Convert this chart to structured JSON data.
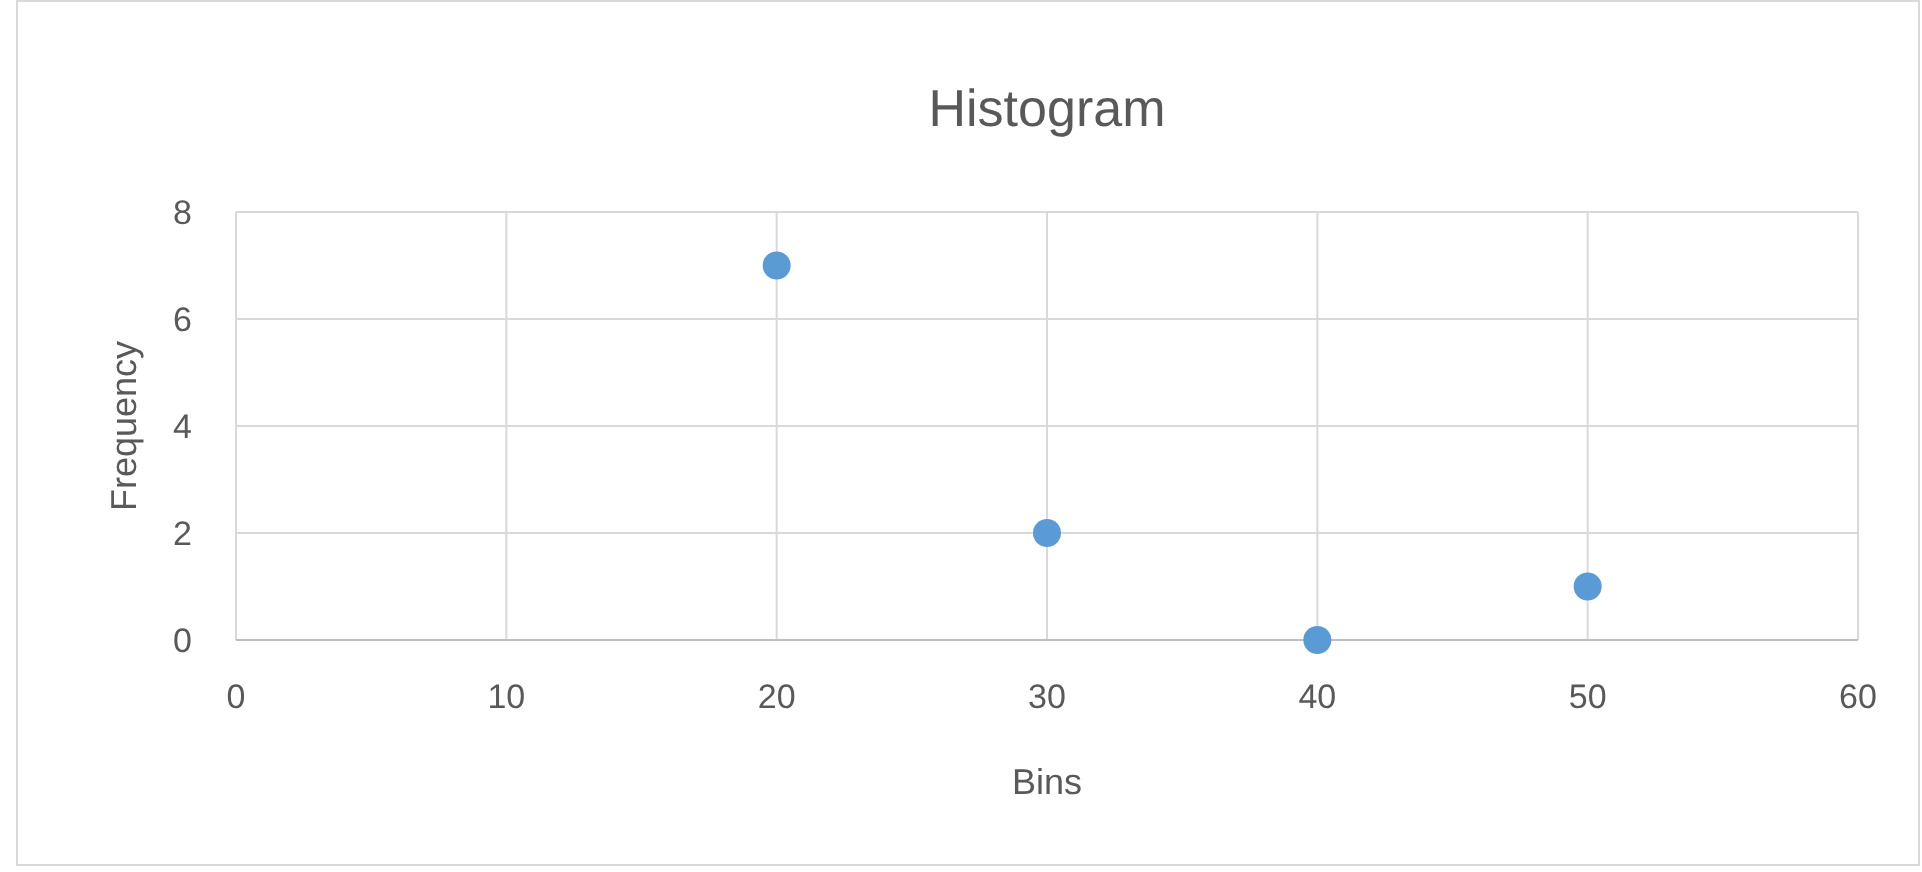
{
  "chart_data": {
    "type": "scatter",
    "title": "Histogram",
    "xlabel": "Bins",
    "ylabel": "Frequency",
    "x": [
      20,
      30,
      40,
      50
    ],
    "values": [
      7,
      2,
      0,
      1
    ],
    "color": "#5b9bd5",
    "xlim": [
      0,
      60
    ],
    "xticks": [
      0,
      10,
      20,
      30,
      40,
      50,
      60
    ],
    "ylim": [
      0,
      8
    ],
    "yticks": [
      0,
      2,
      4,
      6,
      8
    ],
    "grid": true,
    "marker": "circle"
  }
}
